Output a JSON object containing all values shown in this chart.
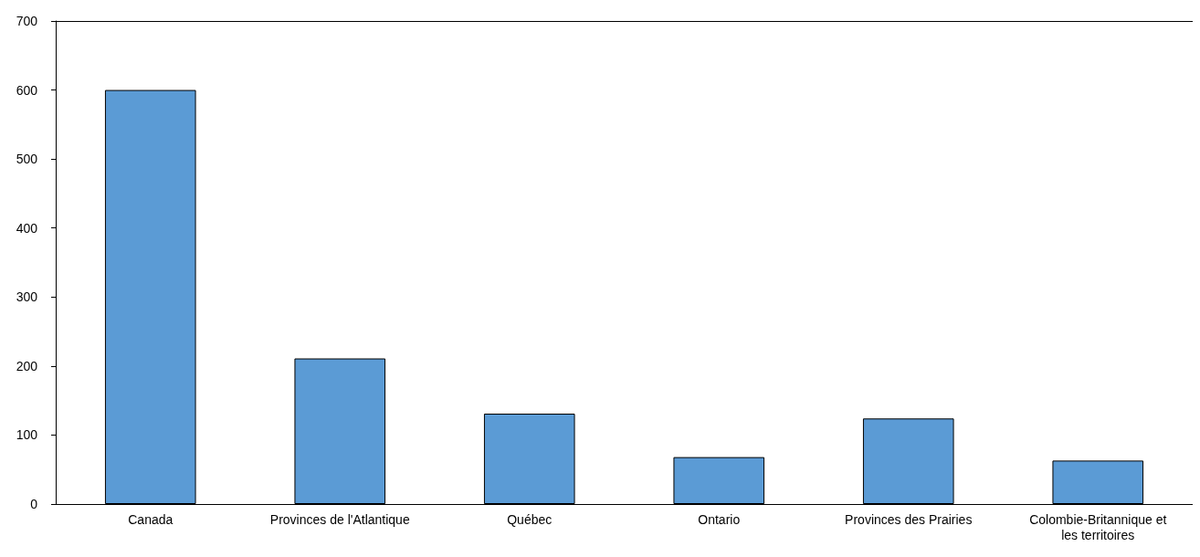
{
  "chart_data": {
    "type": "bar",
    "categories": [
      "Canada",
      "Provinces de l'Atlantique",
      "Québec",
      "Ontario",
      "Provinces des Prairies",
      "Colombie-Britannique et les territoires"
    ],
    "values": [
      600,
      211,
      131,
      68,
      124,
      63
    ],
    "color": "#5b9bd5",
    "ylim": [
      0,
      700
    ],
    "yticks": [
      0,
      100,
      200,
      300,
      400,
      500,
      600,
      700
    ],
    "grid": false
  }
}
